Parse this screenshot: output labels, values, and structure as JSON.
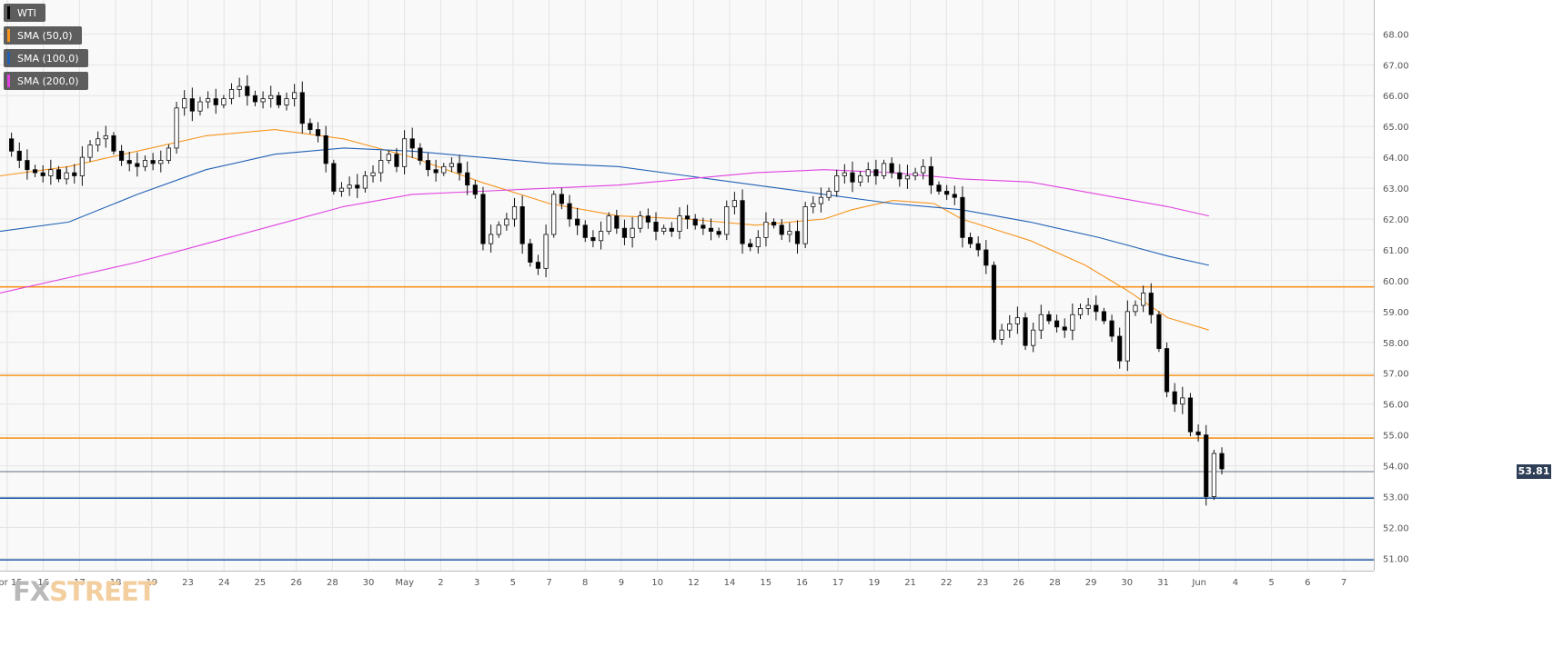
{
  "legend": [
    {
      "label": "WTI",
      "color": "#000000"
    },
    {
      "label": "SMA (50,0)",
      "color": "#f7941d"
    },
    {
      "label": "SMA (100,0)",
      "color": "#2061b4"
    },
    {
      "label": "SMA (200,0)",
      "color": "#e040e0"
    }
  ],
  "watermark": {
    "fx": "FX",
    "street": "STREET"
  },
  "last_price_label": "53.81",
  "chart_data": {
    "type": "candlestick",
    "title": "",
    "xlabel": "",
    "ylabel": "",
    "ylim": [
      50.6,
      69.1
    ],
    "y_ticks": [
      "51.00",
      "52.00",
      "53.00",
      "54.00",
      "55.00",
      "56.00",
      "57.00",
      "58.00",
      "59.00",
      "60.00",
      "61.00",
      "62.00",
      "63.00",
      "64.00",
      "65.00",
      "66.00",
      "67.00",
      "68.00"
    ],
    "x_ticks": [
      "Apr 15",
      "16",
      "17",
      "18",
      "19",
      "23",
      "24",
      "25",
      "26",
      "28",
      "30",
      "May",
      "2",
      "3",
      "5",
      "7",
      "8",
      "9",
      "10",
      "12",
      "14",
      "15",
      "16",
      "17",
      "19",
      "21",
      "22",
      "23",
      "26",
      "28",
      "29",
      "30",
      "31",
      "Jun",
      "4",
      "5",
      "6",
      "7"
    ],
    "grid": true,
    "legend_position": "top-left",
    "last_price": 53.81,
    "horizontal_levels": [
      {
        "value": 59.8,
        "color": "#f7941d"
      },
      {
        "value": 56.93,
        "color": "#f7941d"
      },
      {
        "value": 54.9,
        "color": "#f7941d"
      },
      {
        "value": 52.95,
        "color": "#1f5aa8"
      },
      {
        "value": 50.95,
        "color": "#1f5aa8"
      }
    ],
    "price_path": [
      64.6,
      64.2,
      63.9,
      63.6,
      63.5,
      63.4,
      63.6,
      63.3,
      63.5,
      63.4,
      64.0,
      64.4,
      64.6,
      64.7,
      64.2,
      63.9,
      63.8,
      63.7,
      63.9,
      63.8,
      63.9,
      64.3,
      65.6,
      65.9,
      65.5,
      65.8,
      65.9,
      65.7,
      65.9,
      66.2,
      66.3,
      66.0,
      65.8,
      65.9,
      66.0,
      65.7,
      65.9,
      66.1,
      65.1,
      64.9,
      64.7,
      63.8,
      62.9,
      63.0,
      63.1,
      63.0,
      63.4,
      63.5,
      63.9,
      64.1,
      63.7,
      64.6,
      64.3,
      63.9,
      63.6,
      63.5,
      63.7,
      63.8,
      63.5,
      63.1,
      62.8,
      61.2,
      61.5,
      61.8,
      62.0,
      62.4,
      61.2,
      60.6,
      60.4,
      61.5,
      62.8,
      62.5,
      62.0,
      61.8,
      61.4,
      61.3,
      61.6,
      62.1,
      61.7,
      61.4,
      61.7,
      62.1,
      61.9,
      61.6,
      61.7,
      61.6,
      62.1,
      62.0,
      61.8,
      61.7,
      61.6,
      61.5,
      62.4,
      62.6,
      61.2,
      61.1,
      61.4,
      61.9,
      61.8,
      61.5,
      61.6,
      61.2,
      62.4,
      62.5,
      62.7,
      62.9,
      63.4,
      63.5,
      63.2,
      63.4,
      63.6,
      63.4,
      63.8,
      63.5,
      63.3,
      63.4,
      63.5,
      63.7,
      63.1,
      62.9,
      62.8,
      62.7,
      61.4,
      61.2,
      61.0,
      60.5,
      58.1,
      58.4,
      58.6,
      58.8,
      57.9,
      58.4,
      58.9,
      58.7,
      58.5,
      58.4,
      58.9,
      59.1,
      59.2,
      59.0,
      58.7,
      58.2,
      57.4,
      59.0,
      59.2,
      59.6,
      58.9,
      57.8,
      56.4,
      56.0,
      56.2,
      55.1,
      55.0,
      53.0,
      54.4,
      53.9
    ],
    "sma_50": {
      "x_frac": [
        0.0,
        0.05,
        0.1,
        0.15,
        0.2,
        0.25,
        0.3,
        0.35,
        0.4,
        0.45,
        0.5,
        0.55,
        0.6,
        0.62,
        0.65,
        0.68,
        0.7,
        0.75,
        0.79,
        0.82,
        0.85,
        0.88
      ],
      "values": [
        63.4,
        63.7,
        64.2,
        64.7,
        64.9,
        64.6,
        64.0,
        63.2,
        62.5,
        62.1,
        62.0,
        61.8,
        62.0,
        62.3,
        62.6,
        62.5,
        62.0,
        61.3,
        60.5,
        59.7,
        58.8,
        58.4
      ]
    },
    "sma_100": {
      "x_frac": [
        0.0,
        0.05,
        0.1,
        0.15,
        0.2,
        0.25,
        0.3,
        0.35,
        0.4,
        0.45,
        0.5,
        0.55,
        0.6,
        0.65,
        0.7,
        0.75,
        0.8,
        0.85,
        0.88
      ],
      "values": [
        61.6,
        61.9,
        62.8,
        63.6,
        64.1,
        64.3,
        64.2,
        64.0,
        63.8,
        63.7,
        63.4,
        63.1,
        62.8,
        62.5,
        62.3,
        61.9,
        61.4,
        60.8,
        60.5
      ]
    },
    "sma_200": {
      "x_frac": [
        0.0,
        0.05,
        0.1,
        0.15,
        0.2,
        0.25,
        0.3,
        0.35,
        0.4,
        0.45,
        0.5,
        0.55,
        0.6,
        0.65,
        0.7,
        0.75,
        0.8,
        0.85,
        0.88
      ],
      "values": [
        59.6,
        60.1,
        60.6,
        61.2,
        61.8,
        62.4,
        62.8,
        62.9,
        63.0,
        63.1,
        63.3,
        63.5,
        63.6,
        63.5,
        63.3,
        63.2,
        62.8,
        62.4,
        62.1
      ]
    }
  }
}
